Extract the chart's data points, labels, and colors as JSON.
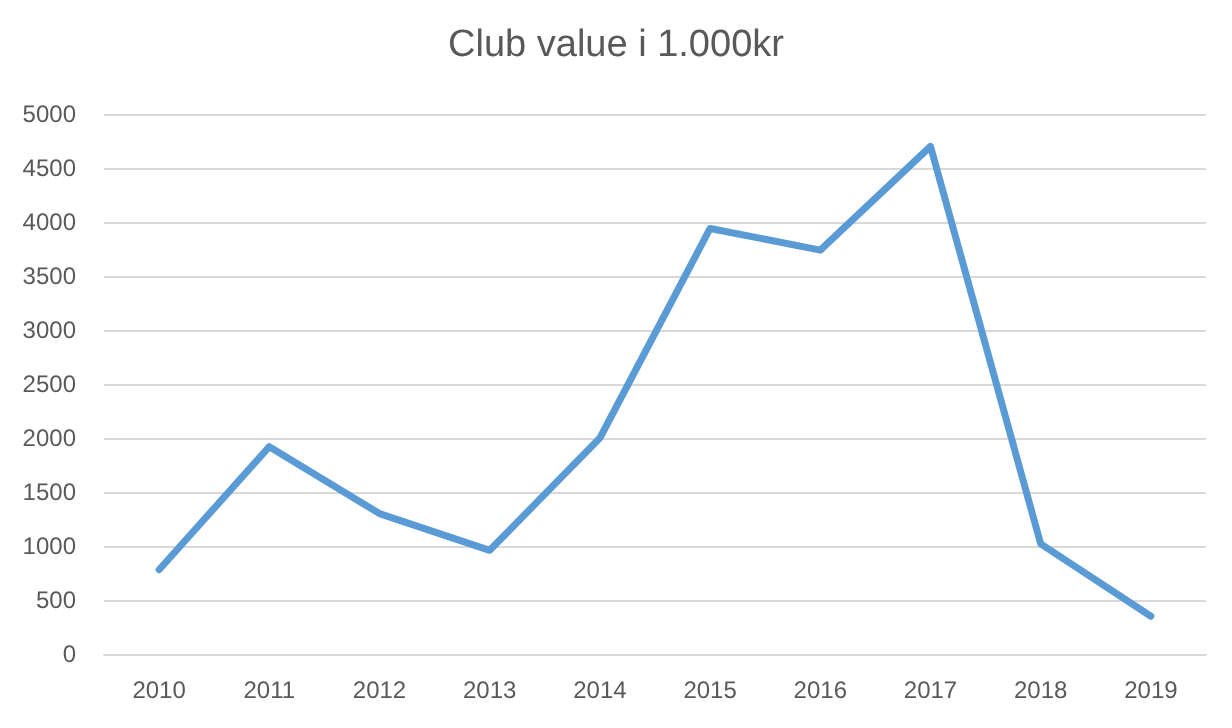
{
  "chart_data": {
    "type": "line",
    "title": "Club value i 1.000kr",
    "categories": [
      "2010",
      "2011",
      "2012",
      "2013",
      "2014",
      "2015",
      "2016",
      "2017",
      "2018",
      "2019"
    ],
    "series": [
      {
        "color": "#5b9bd5",
        "values": [
          780,
          1920,
          1300,
          960,
          2000,
          3940,
          3740,
          4700,
          1020,
          350
        ]
      }
    ],
    "ylim": [
      0,
      5000
    ],
    "yticks": [
      0,
      500,
      1000,
      1500,
      2000,
      2500,
      3000,
      3500,
      4000,
      4500,
      5000
    ],
    "grid": "y",
    "marker": "none",
    "line_style": "solid"
  }
}
